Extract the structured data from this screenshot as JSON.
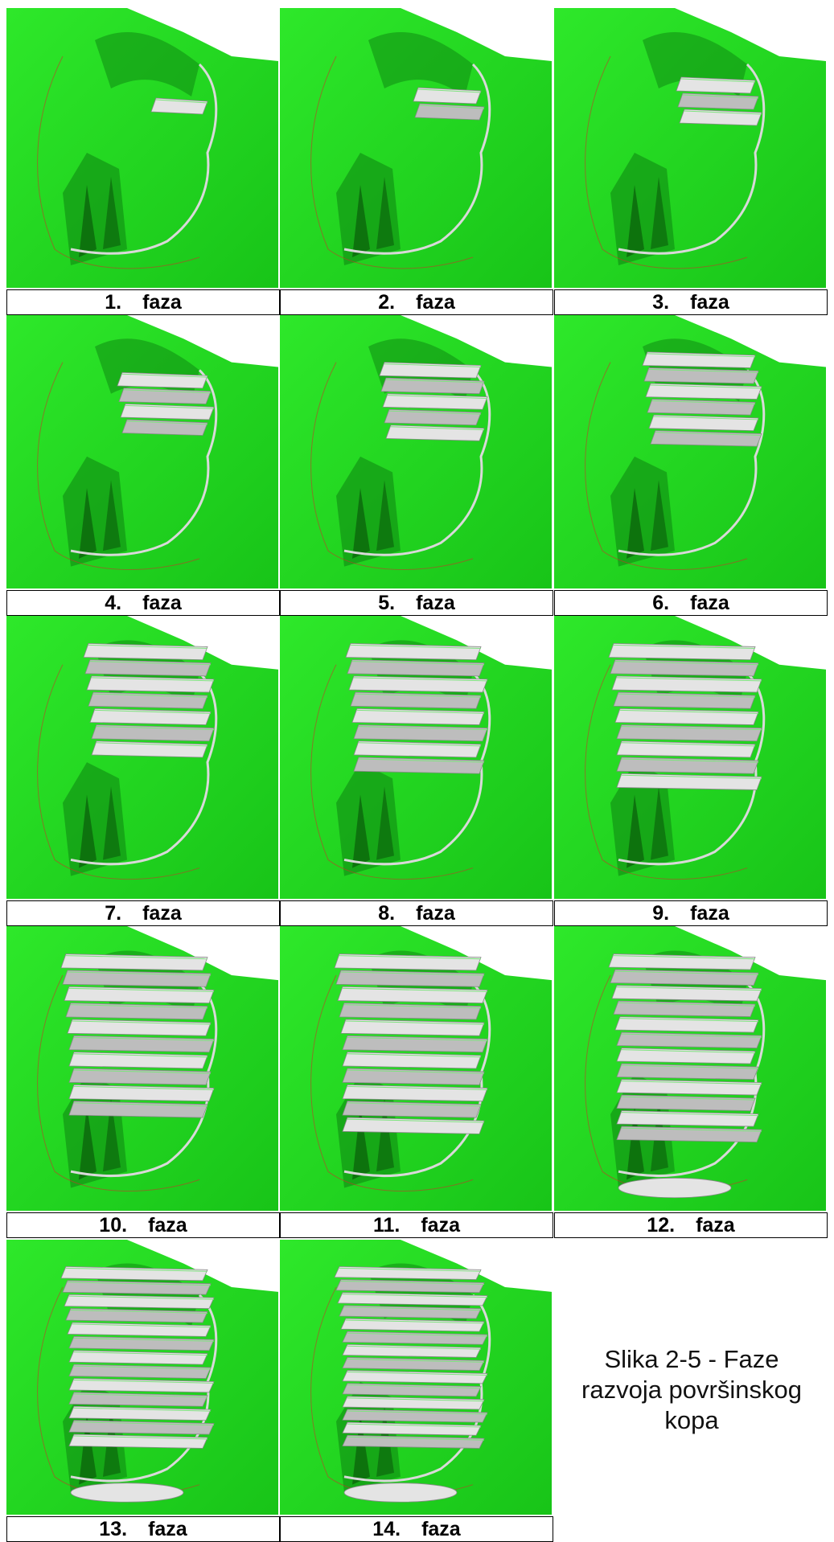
{
  "phases": [
    {
      "number": "1.",
      "word": "faza",
      "benches": 1
    },
    {
      "number": "2.",
      "word": "faza",
      "benches": 2
    },
    {
      "number": "3.",
      "word": "faza",
      "benches": 3
    },
    {
      "number": "4.",
      "word": "faza",
      "benches": 4
    },
    {
      "number": "5.",
      "word": "faza",
      "benches": 5
    },
    {
      "number": "6.",
      "word": "faza",
      "benches": 6
    },
    {
      "number": "7.",
      "word": "faza",
      "benches": 7
    },
    {
      "number": "8.",
      "word": "faza",
      "benches": 8
    },
    {
      "number": "9.",
      "word": "faza",
      "benches": 9
    },
    {
      "number": "10.",
      "word": "faza",
      "benches": 10
    },
    {
      "number": "11.",
      "word": "faza",
      "benches": 11
    },
    {
      "number": "12.",
      "word": "faza",
      "benches": 12
    },
    {
      "number": "13.",
      "word": "faza",
      "benches": 13
    },
    {
      "number": "14.",
      "word": "faza",
      "benches": 14
    }
  ],
  "caption": "Slika 2-5 - Faze razvoja površinskog kopa",
  "colors": {
    "terrain": "#22d81f",
    "terrain_dark": "#0f8a12",
    "pit": "#bdbdbd",
    "pit_light": "#e4e4e4",
    "border": "#000000"
  }
}
